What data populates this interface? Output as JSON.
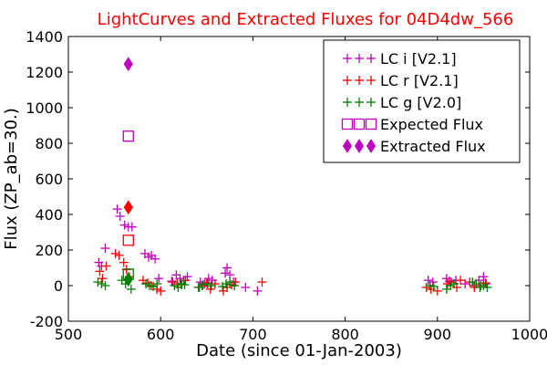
{
  "chart_data": {
    "type": "scatter",
    "title": "LightCurves and Extracted Fluxes for 04D4dw_566",
    "title_color": "#ff0000",
    "xlabel": "Date (since 01-Jan-2003)",
    "ylabel": "Flux (ZP_ab=30.)",
    "xlim": [
      500,
      1000
    ],
    "ylim": [
      -200,
      1400
    ],
    "xticks": [
      500,
      600,
      700,
      800,
      900,
      1000
    ],
    "yticks": [
      -200,
      0,
      200,
      400,
      600,
      800,
      1000,
      1200,
      1400
    ],
    "grid": false,
    "legend_position": "top-right",
    "series": [
      {
        "name": "LC i [V2.1]",
        "marker": "plus",
        "color": "#bf00bf",
        "x": [
          533,
          536,
          540,
          553,
          556,
          561,
          565,
          569,
          583,
          587,
          590,
          594,
          598,
          612,
          617,
          621,
          625,
          629,
          643,
          648,
          652,
          656,
          670,
          672,
          675,
          679,
          692,
          705,
          890,
          895,
          910,
          913,
          920,
          930,
          940,
          945,
          950,
          953
        ],
        "y": [
          130,
          110,
          210,
          430,
          390,
          340,
          330,
          330,
          180,
          160,
          170,
          150,
          40,
          25,
          60,
          40,
          30,
          50,
          20,
          10,
          40,
          30,
          70,
          100,
          60,
          20,
          -10,
          -30,
          30,
          20,
          40,
          25,
          30,
          10,
          0,
          30,
          50,
          10
        ]
      },
      {
        "name": "LC r [V2.1]",
        "marker": "plus",
        "color": "#ff0000",
        "x": [
          534,
          537,
          541,
          551,
          555,
          560,
          563,
          566,
          581,
          586,
          590,
          596,
          600,
          613,
          618,
          623,
          627,
          641,
          645,
          650,
          654,
          659,
          668,
          672,
          677,
          681,
          710,
          888,
          893,
          900,
          911,
          915,
          921,
          925,
          935,
          940,
          947,
          952
        ],
        "y": [
          80,
          40,
          110,
          180,
          170,
          130,
          90,
          50,
          30,
          15,
          0,
          -20,
          -30,
          20,
          10,
          5,
          30,
          -10,
          0,
          15,
          -20,
          10,
          -30,
          -10,
          5,
          20,
          20,
          -10,
          -20,
          -30,
          10,
          20,
          -10,
          30,
          20,
          -10,
          0,
          15
        ]
      },
      {
        "name": "LC g [V2.0]",
        "marker": "plus",
        "color": "#008000",
        "x": [
          532,
          536,
          540,
          558,
          562,
          568,
          584,
          588,
          592,
          596,
          615,
          619,
          622,
          626,
          642,
          646,
          651,
          655,
          667,
          671,
          675,
          680,
          892,
          896,
          910,
          914,
          918,
          938,
          942,
          946,
          950,
          954
        ],
        "y": [
          20,
          10,
          0,
          30,
          10,
          -20,
          10,
          0,
          -5,
          10,
          0,
          -10,
          10,
          5,
          -10,
          5,
          10,
          0,
          -5,
          10,
          20,
          0,
          0,
          -5,
          -20,
          0,
          10,
          20,
          10,
          -10,
          0,
          -10
        ]
      },
      {
        "name": "Expected Flux",
        "marker": "square-open",
        "color": "#bf00bf",
        "x": [
          565
        ],
        "y": [
          840
        ]
      },
      {
        "name": "Expected Flux (r)",
        "marker": "square-open",
        "color": "#ff0000",
        "x": [
          565
        ],
        "y": [
          255
        ]
      },
      {
        "name": "Expected Flux (g)",
        "marker": "square-open",
        "color": "#008000",
        "x": [
          565
        ],
        "y": [
          65
        ]
      },
      {
        "name": "Extracted Flux",
        "marker": "diamond",
        "color": "#bf00bf",
        "x": [
          565
        ],
        "y": [
          1245
        ]
      },
      {
        "name": "Extracted Flux (r)",
        "marker": "diamond",
        "color": "#ff0000",
        "x": [
          565
        ],
        "y": [
          440
        ]
      },
      {
        "name": "Extracted Flux (g)",
        "marker": "diamond",
        "color": "#008000",
        "x": [
          565
        ],
        "y": [
          35
        ]
      }
    ],
    "legend": [
      {
        "label": "LC i [V2.1]",
        "marker": "plus",
        "color": "#bf00bf"
      },
      {
        "label": "LC r [V2.1]",
        "marker": "plus",
        "color": "#ff0000"
      },
      {
        "label": "LC g [V2.0]",
        "marker": "plus",
        "color": "#008000"
      },
      {
        "label": "Expected Flux",
        "marker": "square-open",
        "color": "#bf00bf"
      },
      {
        "label": "Extracted Flux",
        "marker": "diamond",
        "color": "#bf00bf"
      }
    ]
  }
}
